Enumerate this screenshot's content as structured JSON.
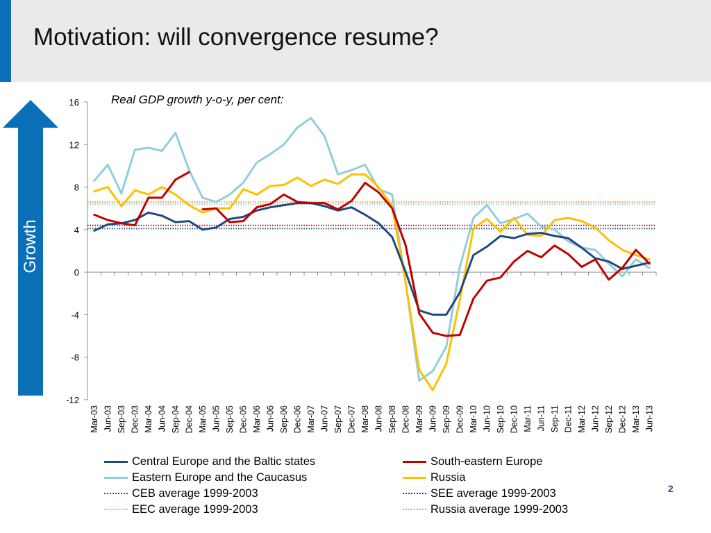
{
  "title": "Motivation: will convergence resume?",
  "side_label": "Growth",
  "slide_number": "2",
  "chart_data": {
    "type": "line",
    "title": "Real GDP growth y-o-y, per cent:",
    "xlabel": "",
    "ylabel": "",
    "ylim": [
      -12,
      16
    ],
    "yticks": [
      16,
      12,
      8,
      4,
      0,
      -4,
      -8,
      -12
    ],
    "x": [
      "Mar-03",
      "Jun-03",
      "Sep-03",
      "Dec-03",
      "Mar-04",
      "Jun-04",
      "Sep-04",
      "Dec-04",
      "Mar-05",
      "Jun-05",
      "Sep-05",
      "Dec-05",
      "Mar-06",
      "Jun-06",
      "Sep-06",
      "Dec-06",
      "Mar-07",
      "Jun-07",
      "Sep-07",
      "Dec-07",
      "Mar-08",
      "Jun-08",
      "Sep-08",
      "Dec-08",
      "Mar-09",
      "Jun-09",
      "Sep-09",
      "Dec-09",
      "Mar-10",
      "Jun-10",
      "Sep-10",
      "Dec-10",
      "Mar-11",
      "Jun-11",
      "Sep-11",
      "Dec-11",
      "Mar-12",
      "Jun-12",
      "Sep-12",
      "Dec-12",
      "Mar-13",
      "Jun-13"
    ],
    "grid": false,
    "legend_position": "bottom",
    "series": [
      {
        "name": "Central Europe and the Baltic states",
        "color": "#1f497d",
        "style": "solid",
        "values": [
          3.9,
          4.5,
          4.6,
          4.9,
          5.6,
          5.3,
          4.7,
          4.8,
          4.0,
          4.2,
          5.0,
          5.2,
          5.8,
          6.1,
          6.3,
          6.5,
          6.5,
          6.2,
          5.8,
          6.1,
          5.4,
          4.6,
          3.3,
          0.0,
          -3.6,
          -4.0,
          -4.0,
          -1.9,
          1.6,
          2.4,
          3.4,
          3.2,
          3.6,
          3.7,
          3.4,
          3.2,
          2.3,
          1.3,
          1.0,
          0.3,
          0.6,
          0.9
        ]
      },
      {
        "name": "South-eastern Europe",
        "color": "#c00000",
        "style": "solid",
        "values": [
          5.4,
          4.9,
          4.6,
          4.4,
          7.0,
          7.0,
          8.7,
          9.4,
          null,
          null,
          null,
          null,
          null,
          null,
          null,
          null,
          null,
          null,
          null,
          null,
          null,
          null,
          null,
          null,
          null,
          null,
          null,
          null,
          null,
          null,
          null,
          null,
          null,
          null,
          null,
          null,
          null,
          null,
          null,
          null,
          null,
          null
        ],
        "values_b": [
          null,
          null,
          null,
          null,
          null,
          null,
          null,
          null,
          5.9,
          6.0,
          4.7,
          4.8,
          6.1,
          6.4,
          7.3,
          6.6,
          6.5,
          6.5,
          5.9,
          6.7,
          8.4,
          7.5,
          6.0,
          2.5,
          -3.9,
          -5.7,
          -6.0,
          -5.9,
          -2.5,
          -0.8,
          -0.5,
          1.0,
          2.0,
          1.4,
          2.5,
          1.7,
          0.5,
          1.2,
          -0.7,
          0.4,
          2.1,
          0.8
        ]
      },
      {
        "name": "Eastern Europe and the Caucasus",
        "color": "#92cddc",
        "style": "solid",
        "values": [
          8.6,
          10.1,
          7.4,
          11.5,
          11.7,
          11.4,
          13.1,
          9.6,
          7.0,
          6.6,
          7.3,
          8.4,
          10.3,
          11.1,
          12.0,
          13.6,
          14.5,
          12.8,
          9.2,
          9.6,
          10.1,
          7.8,
          7.3,
          -1.0,
          -10.2,
          -9.3,
          -7.0,
          0.5,
          5.1,
          6.3,
          4.6,
          5.0,
          5.5,
          4.3,
          4.0,
          2.9,
          2.3,
          2.1,
          0.8,
          -0.4,
          1.2,
          0.4
        ]
      },
      {
        "name": "Russia",
        "color": "#ffc000",
        "style": "solid",
        "values": [
          7.6,
          8.0,
          6.2,
          7.7,
          7.3,
          8.0,
          7.3,
          6.3,
          5.6,
          6.0,
          6.0,
          7.8,
          7.3,
          8.1,
          8.2,
          8.9,
          8.1,
          8.7,
          8.3,
          9.2,
          9.2,
          8.0,
          6.2,
          -1.0,
          -9.2,
          -11.1,
          -8.6,
          -2.6,
          4.1,
          5.0,
          3.8,
          5.1,
          3.5,
          3.4,
          4.9,
          5.1,
          4.8,
          4.2,
          3.0,
          2.1,
          1.6,
          1.2
        ]
      },
      {
        "name": "CEB average 1999-2003",
        "color": "#1f497d",
        "style": "dotted",
        "constant": 4.1
      },
      {
        "name": "SEE average 1999-2003",
        "color": "#c00000",
        "style": "dotted",
        "constant": 4.4
      },
      {
        "name": "EEC average 1999-2003",
        "color": "#92cddc",
        "style": "dotted",
        "constant": 6.4
      },
      {
        "name": "Russia average 1999-2003",
        "color": "#f79646",
        "style": "dotted",
        "constant": 6.6
      }
    ]
  }
}
